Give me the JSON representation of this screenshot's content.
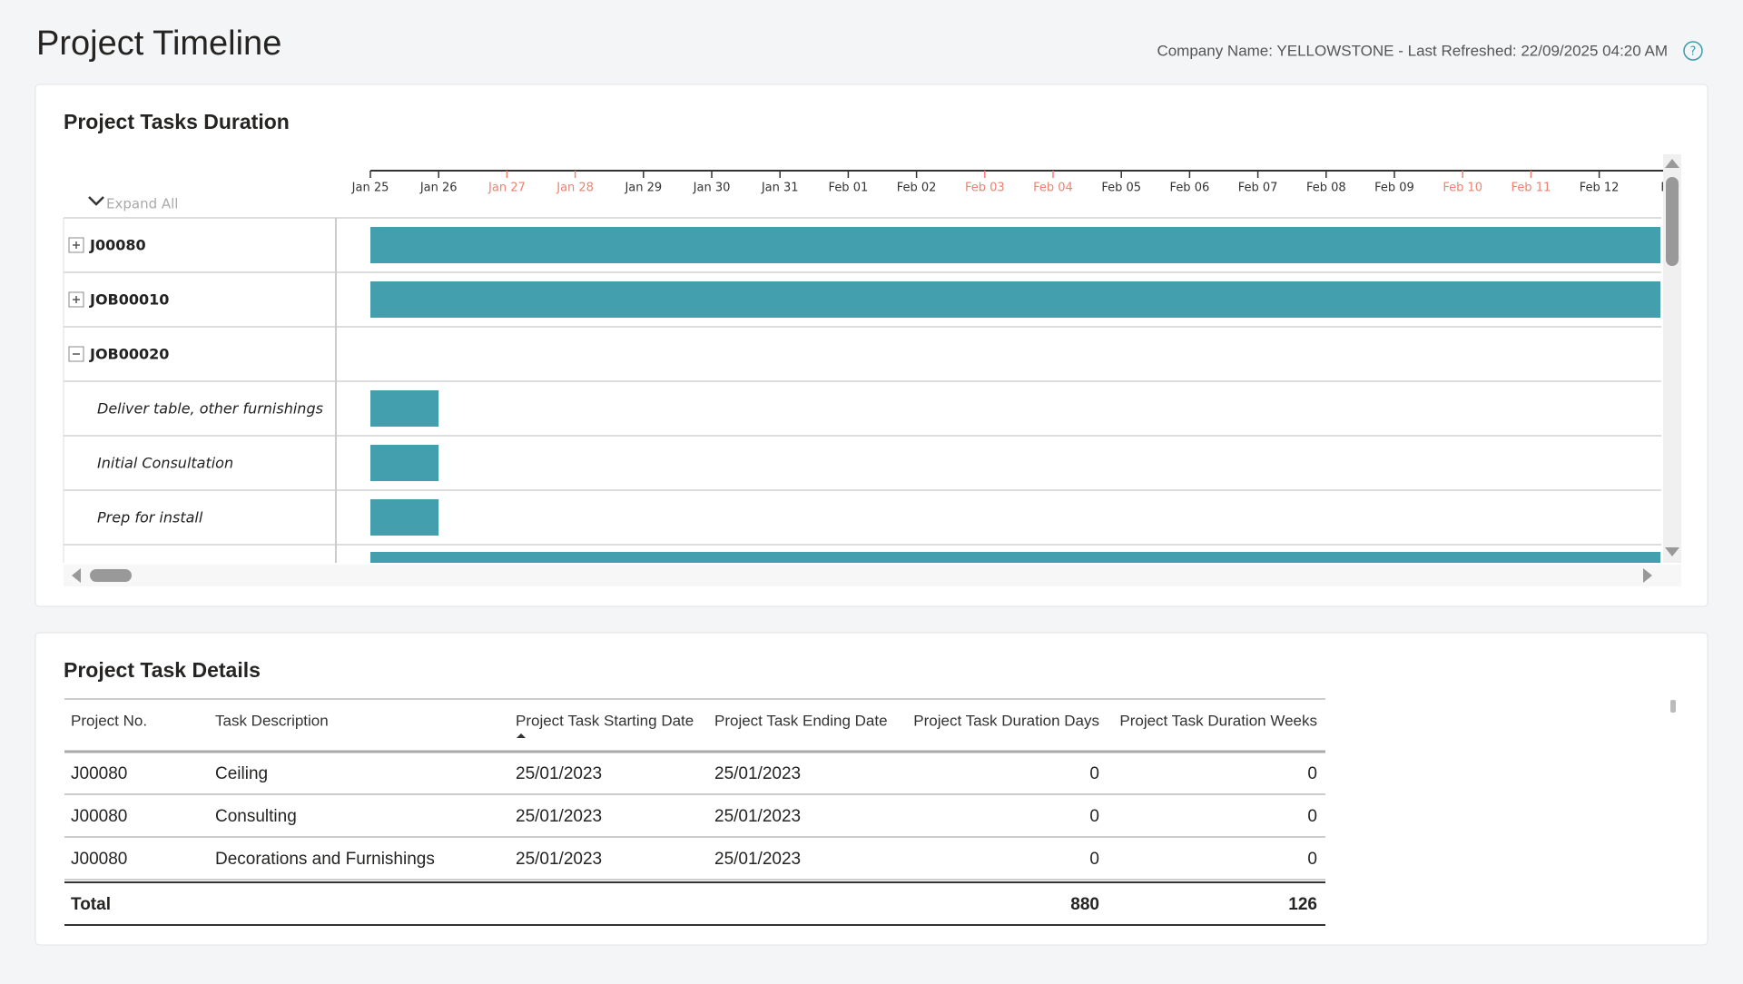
{
  "header": {
    "title": "Project Timeline",
    "info": "Company Name: YELLOWSTONE - Last Refreshed: 22/09/2025 04:20 AM",
    "help": "?"
  },
  "gantt": {
    "title": "Project Tasks Duration",
    "expand_all": "Expand All",
    "dates": [
      "Jan 25",
      "Jan 26",
      "Jan 27",
      "Jan 28",
      "Jan 29",
      "Jan 30",
      "Jan 31",
      "Feb 01",
      "Feb 02",
      "Feb 03",
      "Feb 04",
      "Feb 05",
      "Feb 06",
      "Feb 07",
      "Feb 08",
      "Feb 09",
      "Feb 10",
      "Feb 11",
      "Feb 12",
      "Fe"
    ],
    "rows": [
      "J00080",
      "JOB00010",
      "JOB00020",
      "Deliver table, other furnishings",
      "Initial Consultation",
      "Prep for install"
    ]
  },
  "details": {
    "title": "Project Task Details",
    "columns": [
      "Project No.",
      "Task Description",
      "Project Task Starting Date",
      "Project Task Ending Date",
      "Project Task Duration Days",
      "Project Task Duration Weeks"
    ],
    "rows": [
      [
        "J00080",
        "Ceiling",
        "25/01/2023",
        "25/01/2023",
        0,
        0
      ],
      [
        "J00080",
        "Consulting",
        "25/01/2023",
        "25/01/2023",
        0,
        0
      ],
      [
        "J00080",
        "Decorations and Furnishings",
        "25/01/2023",
        "25/01/2023",
        0,
        0
      ]
    ],
    "total": [
      "Total",
      880,
      126
    ]
  }
}
